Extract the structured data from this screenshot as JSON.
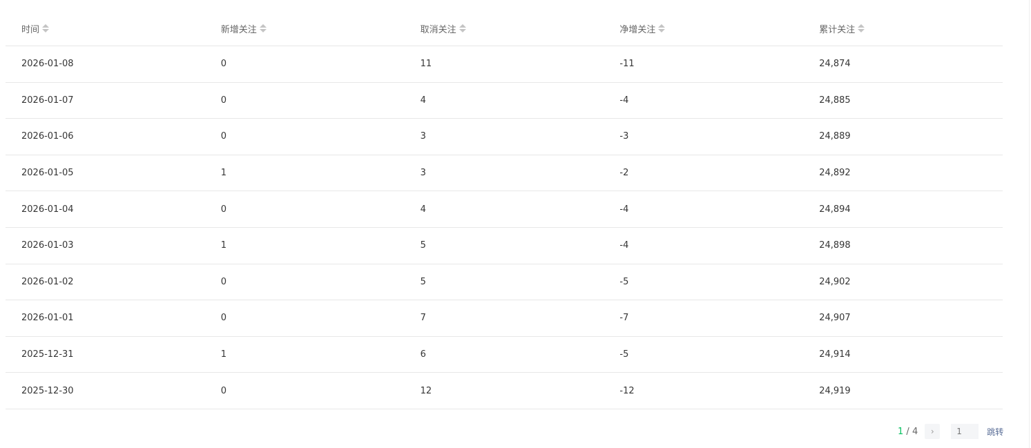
{
  "table": {
    "headers": [
      "时间",
      "新增关注",
      "取消关注",
      "净增关注",
      "累计关注"
    ],
    "rows": [
      [
        "2026-01-08",
        "0",
        "11",
        "-11",
        "24,874"
      ],
      [
        "2026-01-07",
        "0",
        "4",
        "-4",
        "24,885"
      ],
      [
        "2026-01-06",
        "0",
        "3",
        "-3",
        "24,889"
      ],
      [
        "2026-01-05",
        "1",
        "3",
        "-2",
        "24,892"
      ],
      [
        "2026-01-04",
        "0",
        "4",
        "-4",
        "24,894"
      ],
      [
        "2026-01-03",
        "1",
        "5",
        "-4",
        "24,898"
      ],
      [
        "2026-01-02",
        "0",
        "5",
        "-5",
        "24,902"
      ],
      [
        "2026-01-01",
        "0",
        "7",
        "-7",
        "24,907"
      ],
      [
        "2025-12-31",
        "1",
        "6",
        "-5",
        "24,914"
      ],
      [
        "2025-12-30",
        "0",
        "12",
        "-12",
        "24,919"
      ]
    ]
  },
  "pagination": {
    "current": "1",
    "separator": " / ",
    "total": "4",
    "next_icon": "›",
    "page_input": "1",
    "jump_label": "跳转"
  },
  "colors": {
    "accent": "#07c160",
    "link": "#576b95"
  }
}
